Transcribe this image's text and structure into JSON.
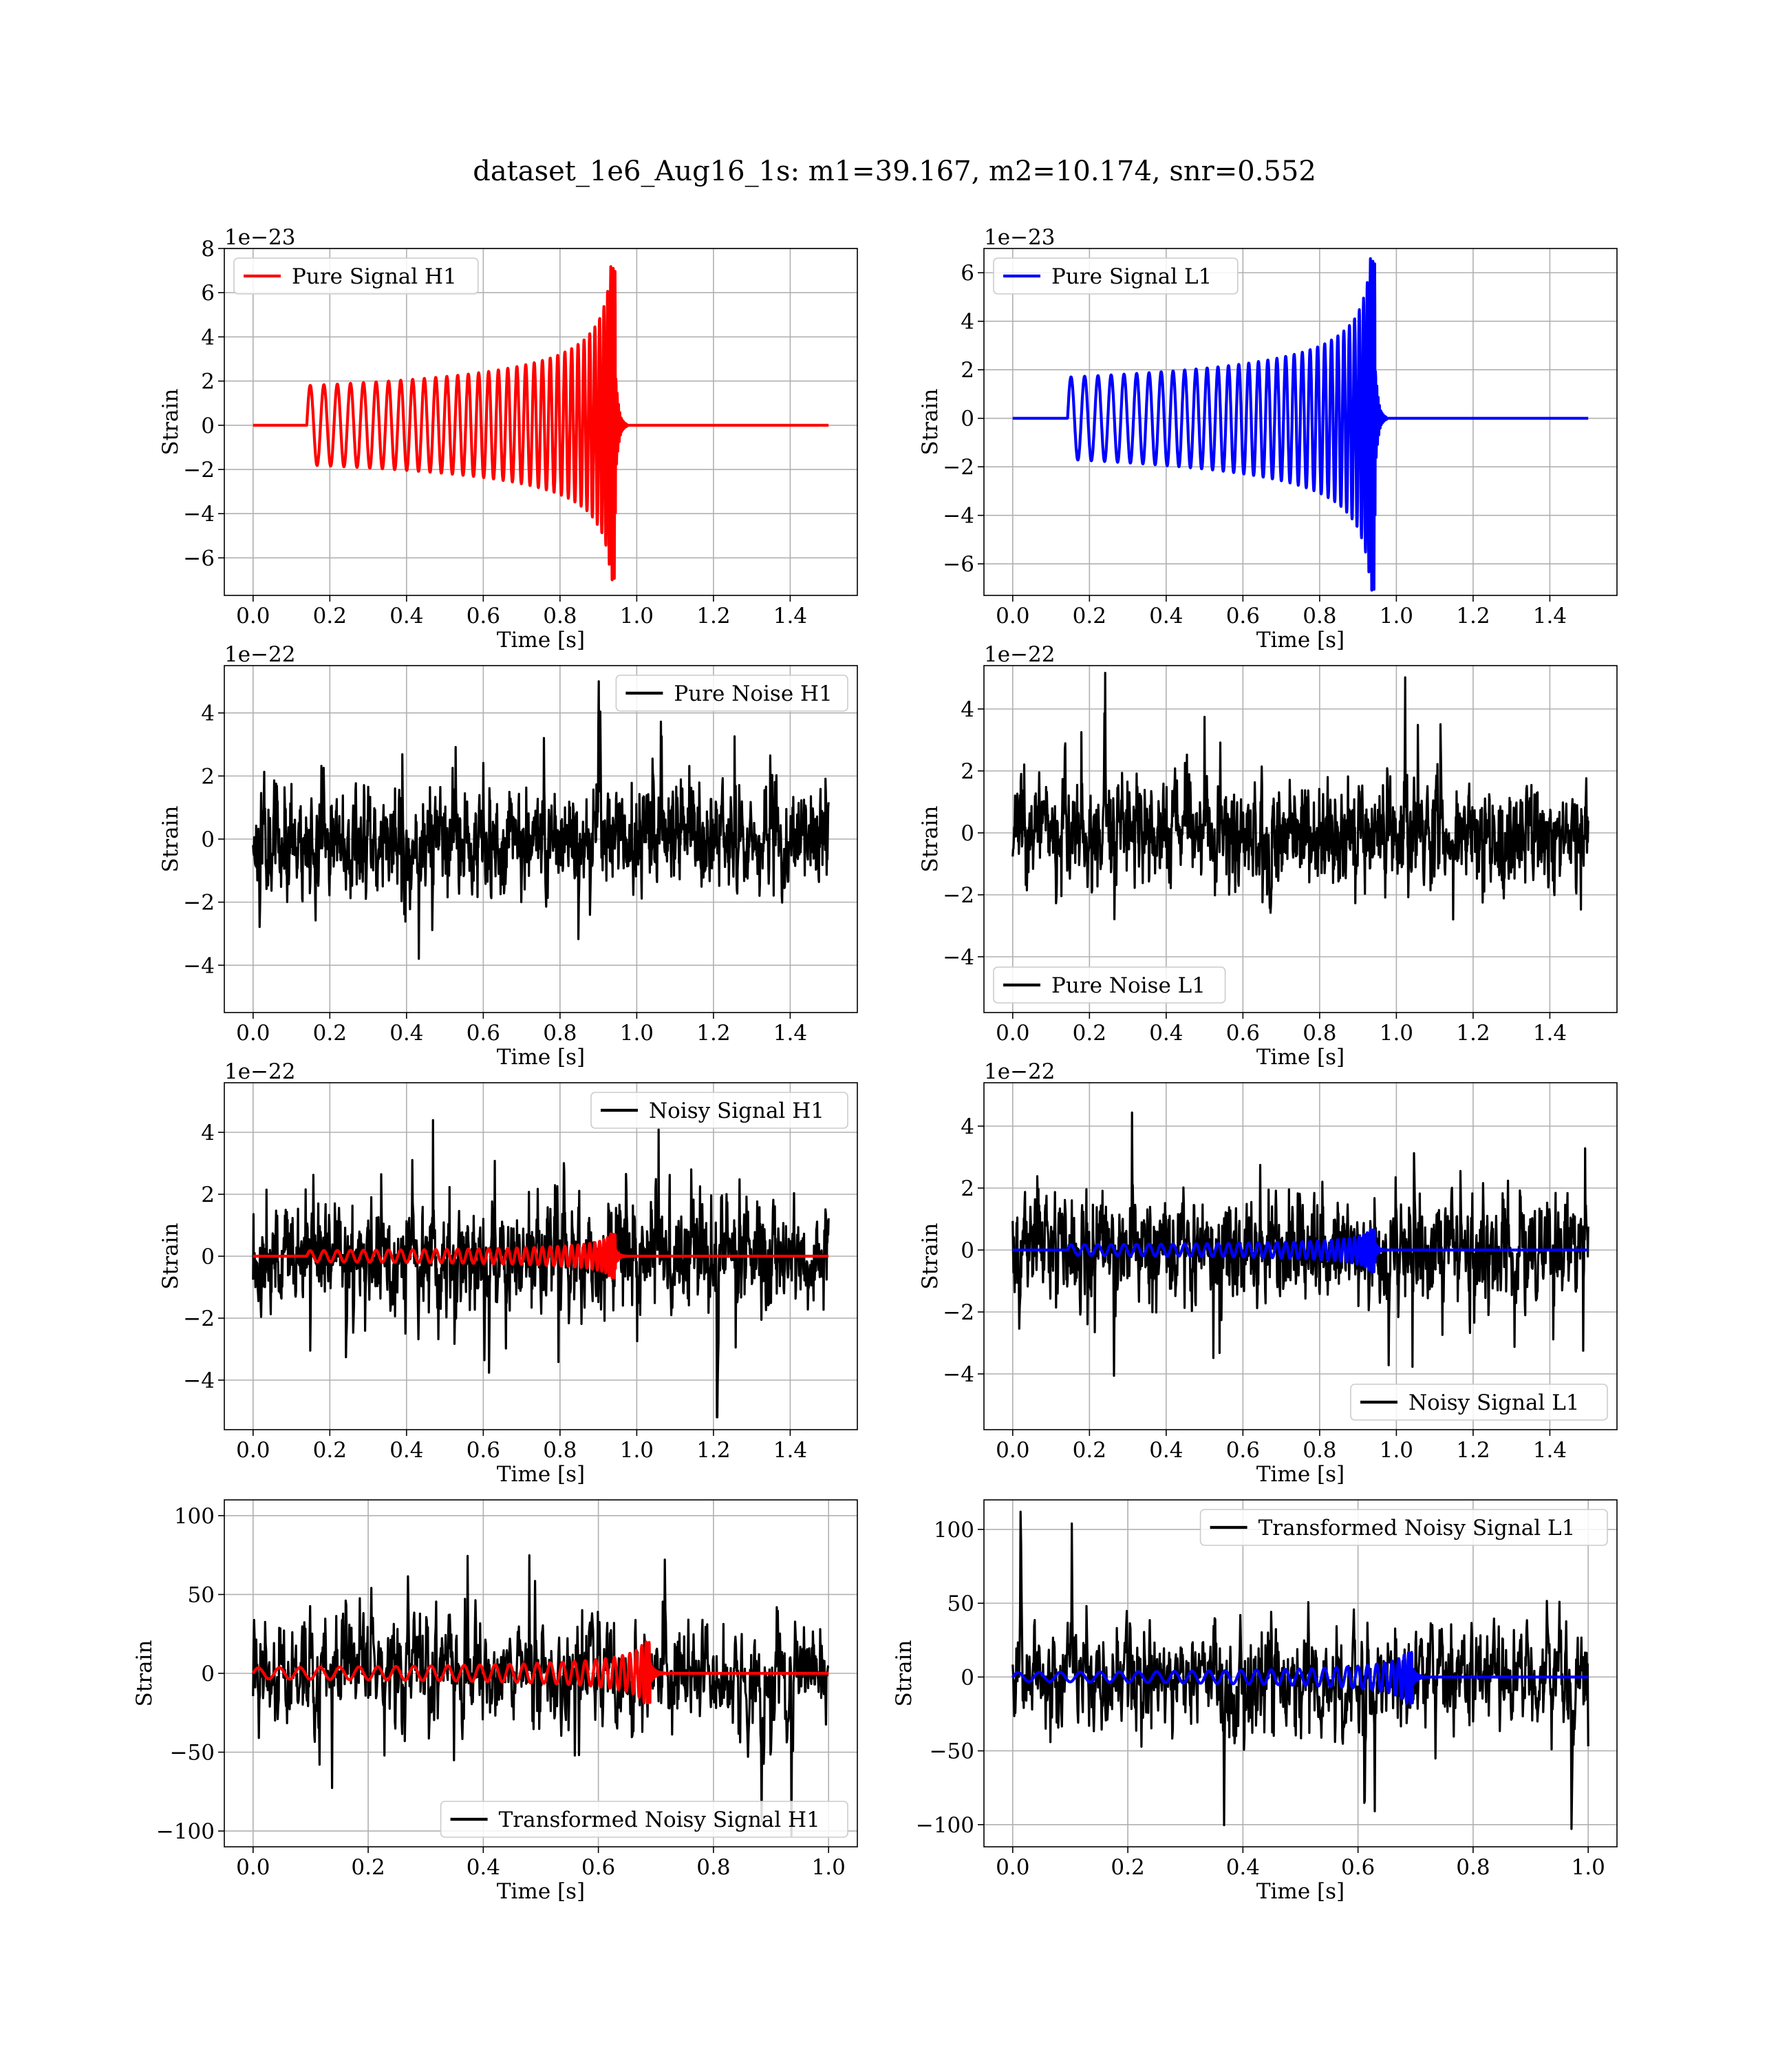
{
  "figure": {
    "title": "dataset_1e6_Aug16_1s: m1=39.167, m2=10.174, snr=0.552"
  },
  "colors": {
    "red": "#ff0000",
    "blue": "#0000ff",
    "black": "#000000",
    "grid": "#b0b0b0"
  },
  "chart_data": [
    {
      "id": "pure-signal-h1",
      "type": "line",
      "xlabel": "Time [s]",
      "ylabel": "Strain",
      "offset_text": "1e−23",
      "xlim": [
        -0.075,
        1.575
      ],
      "ylim": [
        -7.7,
        8.0
      ],
      "xticks": [
        0.0,
        0.2,
        0.4,
        0.6,
        0.8,
        1.0,
        1.2,
        1.4
      ],
      "xtick_labels": [
        "0.0",
        "0.2",
        "0.4",
        "0.6",
        "0.8",
        "1.0",
        "1.2",
        "1.4"
      ],
      "yticks": [
        -6,
        -4,
        -2,
        0,
        2,
        4,
        6,
        8
      ],
      "ytick_labels": [
        "−6",
        "−4",
        "−2",
        "0",
        "2",
        "4",
        "6",
        "8"
      ],
      "legend": {
        "position": "upper-left"
      },
      "grid": true,
      "series": [
        {
          "name": "Pure Signal H1",
          "color": "#ff0000",
          "kind": "chirp",
          "params": {
            "x_start": 0.0,
            "x_end": 1.5,
            "t0": 0.14,
            "tc": 0.945,
            "amp_start": 1.8,
            "amp_peak_pos": 7.3,
            "amp_peak_neg": 7.0,
            "cycles": 36
          }
        }
      ]
    },
    {
      "id": "pure-signal-l1",
      "type": "line",
      "xlabel": "Time [s]",
      "ylabel": "Strain",
      "offset_text": "1e−23",
      "xlim": [
        -0.075,
        1.575
      ],
      "ylim": [
        -7.3,
        7.0
      ],
      "xticks": [
        0.0,
        0.2,
        0.4,
        0.6,
        0.8,
        1.0,
        1.2,
        1.4
      ],
      "xtick_labels": [
        "0.0",
        "0.2",
        "0.4",
        "0.6",
        "0.8",
        "1.0",
        "1.2",
        "1.4"
      ],
      "yticks": [
        -6,
        -4,
        -2,
        0,
        2,
        4,
        6
      ],
      "ytick_labels": [
        "−6",
        "−4",
        "−2",
        "0",
        "2",
        "4",
        "6"
      ],
      "legend": {
        "position": "upper-left"
      },
      "grid": true,
      "series": [
        {
          "name": "Pure Signal L1",
          "color": "#0000ff",
          "kind": "chirp",
          "params": {
            "x_start": 0.0,
            "x_end": 1.5,
            "t0": 0.143,
            "tc": 0.945,
            "amp_start": 1.7,
            "amp_peak_pos": 6.7,
            "amp_peak_neg": 7.1,
            "cycles": 36
          }
        }
      ]
    },
    {
      "id": "pure-noise-h1",
      "type": "line",
      "xlabel": "Time [s]",
      "ylabel": "Strain",
      "offset_text": "1e−22",
      "xlim": [
        -0.075,
        1.575
      ],
      "ylim": [
        -5.5,
        5.5
      ],
      "xticks": [
        0.0,
        0.2,
        0.4,
        0.6,
        0.8,
        1.0,
        1.2,
        1.4
      ],
      "xtick_labels": [
        "0.0",
        "0.2",
        "0.4",
        "0.6",
        "0.8",
        "1.0",
        "1.2",
        "1.4"
      ],
      "yticks": [
        -4,
        -2,
        0,
        2,
        4
      ],
      "ytick_labels": [
        "−4",
        "−2",
        "0",
        "2",
        "4"
      ],
      "legend": {
        "position": "upper-right"
      },
      "grid": true,
      "series": [
        {
          "name": "Pure Noise H1",
          "color": "#000000",
          "kind": "noise",
          "params": {
            "x_start": 0.0,
            "x_end": 1.5,
            "n": 1500,
            "scale": 1.25,
            "clip": 5.0,
            "seed": 11
          }
        }
      ]
    },
    {
      "id": "pure-noise-l1",
      "type": "line",
      "xlabel": "Time [s]",
      "ylabel": "Strain",
      "offset_text": "1e−22",
      "xlim": [
        -0.075,
        1.575
      ],
      "ylim": [
        -5.8,
        5.4
      ],
      "xticks": [
        0.0,
        0.2,
        0.4,
        0.6,
        0.8,
        1.0,
        1.2,
        1.4
      ],
      "xtick_labels": [
        "0.0",
        "0.2",
        "0.4",
        "0.6",
        "0.8",
        "1.0",
        "1.2",
        "1.4"
      ],
      "yticks": [
        -4,
        -2,
        0,
        2,
        4
      ],
      "ytick_labels": [
        "−4",
        "−2",
        "0",
        "2",
        "4"
      ],
      "legend": {
        "position": "lower-left"
      },
      "grid": true,
      "series": [
        {
          "name": "Pure Noise L1",
          "color": "#000000",
          "kind": "noise",
          "params": {
            "x_start": 0.0,
            "x_end": 1.5,
            "n": 1500,
            "scale": 1.25,
            "clip": 5.2,
            "seed": 23
          }
        }
      ]
    },
    {
      "id": "noisy-signal-h1",
      "type": "line",
      "xlabel": "Time [s]",
      "ylabel": "Strain",
      "offset_text": "1e−22",
      "xlim": [
        -0.075,
        1.575
      ],
      "ylim": [
        -5.6,
        5.6
      ],
      "xticks": [
        0.0,
        0.2,
        0.4,
        0.6,
        0.8,
        1.0,
        1.2,
        1.4
      ],
      "xtick_labels": [
        "0.0",
        "0.2",
        "0.4",
        "0.6",
        "0.8",
        "1.0",
        "1.2",
        "1.4"
      ],
      "yticks": [
        -4,
        -2,
        0,
        2,
        4
      ],
      "ytick_labels": [
        "−4",
        "−2",
        "0",
        "2",
        "4"
      ],
      "legend": {
        "position": "upper-right",
        "entries": [
          "Noisy Signal H1"
        ]
      },
      "grid": true,
      "series": [
        {
          "name": "Noisy Signal H1",
          "color": "#000000",
          "kind": "noise",
          "params": {
            "x_start": 0.0,
            "x_end": 1.5,
            "n": 1500,
            "scale": 1.25,
            "clip": 5.2,
            "seed": 37
          }
        },
        {
          "color": "#ff0000",
          "kind": "chirp",
          "params": {
            "x_start": 0.0,
            "x_end": 1.5,
            "t0": 0.14,
            "tc": 0.945,
            "amp_start": 0.18,
            "amp_peak_pos": 0.73,
            "amp_peak_neg": 0.7,
            "cycles": 36
          }
        }
      ]
    },
    {
      "id": "noisy-signal-l1",
      "type": "line",
      "xlabel": "Time [s]",
      "ylabel": "Strain",
      "offset_text": "1e−22",
      "xlim": [
        -0.075,
        1.575
      ],
      "ylim": [
        -5.8,
        5.4
      ],
      "xticks": [
        0.0,
        0.2,
        0.4,
        0.6,
        0.8,
        1.0,
        1.2,
        1.4
      ],
      "xtick_labels": [
        "0.0",
        "0.2",
        "0.4",
        "0.6",
        "0.8",
        "1.0",
        "1.2",
        "1.4"
      ],
      "yticks": [
        -4,
        -2,
        0,
        2,
        4
      ],
      "ytick_labels": [
        "−4",
        "−2",
        "0",
        "2",
        "4"
      ],
      "legend": {
        "position": "lower-right",
        "entries": [
          "Noisy Signal L1"
        ]
      },
      "grid": true,
      "series": [
        {
          "name": "Noisy Signal L1",
          "color": "#000000",
          "kind": "noise",
          "params": {
            "x_start": 0.0,
            "x_end": 1.5,
            "n": 1500,
            "scale": 1.25,
            "clip": 5.2,
            "seed": 51
          }
        },
        {
          "color": "#0000ff",
          "kind": "chirp",
          "params": {
            "x_start": 0.0,
            "x_end": 1.5,
            "t0": 0.143,
            "tc": 0.945,
            "amp_start": 0.17,
            "amp_peak_pos": 0.67,
            "amp_peak_neg": 0.71,
            "cycles": 36
          }
        }
      ]
    },
    {
      "id": "transformed-noisy-signal-h1",
      "type": "line",
      "xlabel": "Time [s]",
      "ylabel": "Strain",
      "offset_text": "",
      "xlim": [
        -0.05,
        1.05
      ],
      "ylim": [
        -110,
        110
      ],
      "xticks": [
        0.0,
        0.2,
        0.4,
        0.6,
        0.8,
        1.0
      ],
      "xtick_labels": [
        "0.0",
        "0.2",
        "0.4",
        "0.6",
        "0.8",
        "1.0"
      ],
      "yticks": [
        -100,
        -50,
        0,
        50,
        100
      ],
      "ytick_labels": [
        "−100",
        "−50",
        "0",
        "50",
        "100"
      ],
      "legend": {
        "position": "lower-right",
        "entries": [
          "Transformed Noisy Signal H1"
        ]
      },
      "grid": true,
      "series": [
        {
          "name": "Transformed Noisy Signal H1",
          "color": "#000000",
          "kind": "noise",
          "params": {
            "x_start": 0.0,
            "x_end": 1.0,
            "n": 1100,
            "scale": 26,
            "clip": 103,
            "seed": 67
          }
        },
        {
          "color": "#ff0000",
          "kind": "chirp",
          "params": {
            "x_start": 0.0,
            "x_end": 1.0,
            "t0": 0.0,
            "tc": 0.69,
            "amp_start": 3.5,
            "amp_peak_pos": 20,
            "amp_peak_neg": 19,
            "cycles": 30
          }
        }
      ]
    },
    {
      "id": "transformed-noisy-signal-l1",
      "type": "line",
      "xlabel": "Time [s]",
      "ylabel": "Strain",
      "offset_text": "",
      "xlim": [
        -0.05,
        1.05
      ],
      "ylim": [
        -115,
        120
      ],
      "xticks": [
        0.0,
        0.2,
        0.4,
        0.6,
        0.8,
        1.0
      ],
      "xtick_labels": [
        "0.0",
        "0.2",
        "0.4",
        "0.6",
        "0.8",
        "1.0"
      ],
      "yticks": [
        -100,
        -50,
        0,
        50,
        100
      ],
      "ytick_labels": [
        "−100",
        "−50",
        "0",
        "50",
        "100"
      ],
      "legend": {
        "position": "upper-right",
        "entries": [
          "Transformed Noisy Signal L1"
        ]
      },
      "grid": true,
      "series": [
        {
          "name": "Transformed Noisy Signal L1",
          "color": "#000000",
          "kind": "noise",
          "params": {
            "x_start": 0.0,
            "x_end": 1.0,
            "n": 1100,
            "scale": 27,
            "clip": 112,
            "seed": 83
          }
        },
        {
          "color": "#0000ff",
          "kind": "chirp",
          "params": {
            "x_start": 0.0,
            "x_end": 1.0,
            "t0": 0.0,
            "tc": 0.695,
            "amp_start": 3.0,
            "amp_peak_pos": 17,
            "amp_peak_neg": 18,
            "cycles": 30
          }
        }
      ]
    }
  ]
}
